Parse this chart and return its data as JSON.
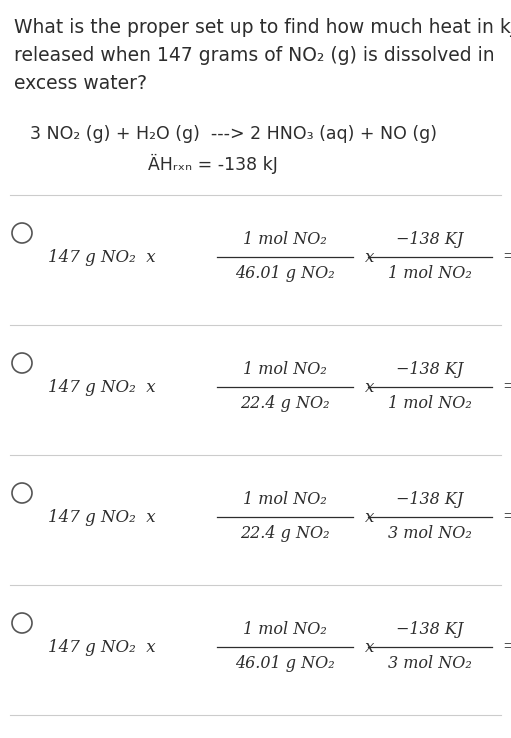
{
  "bg_color": "#ffffff",
  "text_color": "#2d2d2d",
  "question_lines": [
    "What is the proper set up to find how much heat in kJ is",
    "released when 147 grams of NO₂ (g) is dissolved in",
    "excess water?"
  ],
  "equation_line1": "3 NO₂ (g) + H₂O (g)  ---> 2 HNO₃ (aq) + NO (g)",
  "equation_line2": "ÄHᵣₓₙ = -138 kJ",
  "options": [
    {
      "frac1_num": "1 mol NO₂",
      "frac1_den": "46.01 g NO₂",
      "frac2_num": "−138 KJ",
      "frac2_den": "1 mol NO₂"
    },
    {
      "frac1_num": "1 mol NO₂",
      "frac1_den": "22.4 g NO₂",
      "frac2_num": "−138 KJ",
      "frac2_den": "1 mol NO₂"
    },
    {
      "frac1_num": "1 mol NO₂",
      "frac1_den": "22.4 g NO₂",
      "frac2_num": "−138 KJ",
      "frac2_den": "3 mol NO₂"
    },
    {
      "frac1_num": "1 mol NO₂",
      "frac1_den": "46.01 g NO₂",
      "frac2_num": "−138 KJ",
      "frac2_den": "3 mol NO₂"
    }
  ],
  "figsize": [
    5.11,
    7.38
  ],
  "dpi": 100
}
